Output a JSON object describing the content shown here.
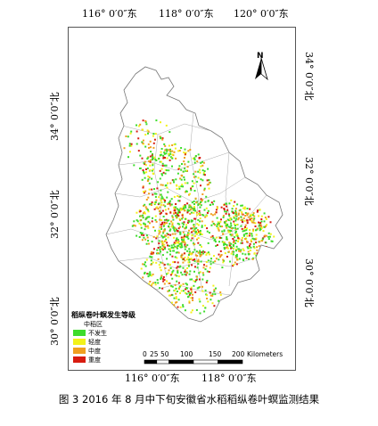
{
  "map": {
    "top_lon_labels": [
      "116° 0′0″东",
      "118° 0′0″东",
      "120° 0′0″东"
    ],
    "bottom_lon_labels": [
      "116° 0′0″东",
      "118° 0′0″东"
    ],
    "left_lat_labels": [
      "34° 0′0″北",
      "32° 0′0″北",
      "30° 0′0″北"
    ],
    "right_lat_labels": [
      "34° 0′0″北",
      "32° 0′0″北",
      "30° 0′0″北"
    ],
    "north_label": "N"
  },
  "legend": {
    "title": "稻纵卷叶螟发生等级",
    "subtitle": "中稻区",
    "items": [
      {
        "label": "不发生",
        "color": "#3ddc2b"
      },
      {
        "label": "轻度",
        "color": "#f2f21a"
      },
      {
        "label": "中度",
        "color": "#f0a020"
      },
      {
        "label": "重度",
        "color": "#d81c10"
      }
    ]
  },
  "scalebar": {
    "ticks": [
      "0",
      "25",
      "50",
      "100",
      "150",
      "200"
    ],
    "tick_values": [
      0,
      25,
      50,
      100,
      150,
      200
    ],
    "max_value": 200,
    "unit": "Kilometers"
  },
  "caption": "图 3 2016 年 8 月中下旬安徽省水稻稻纵卷叶螟监测结果"
}
